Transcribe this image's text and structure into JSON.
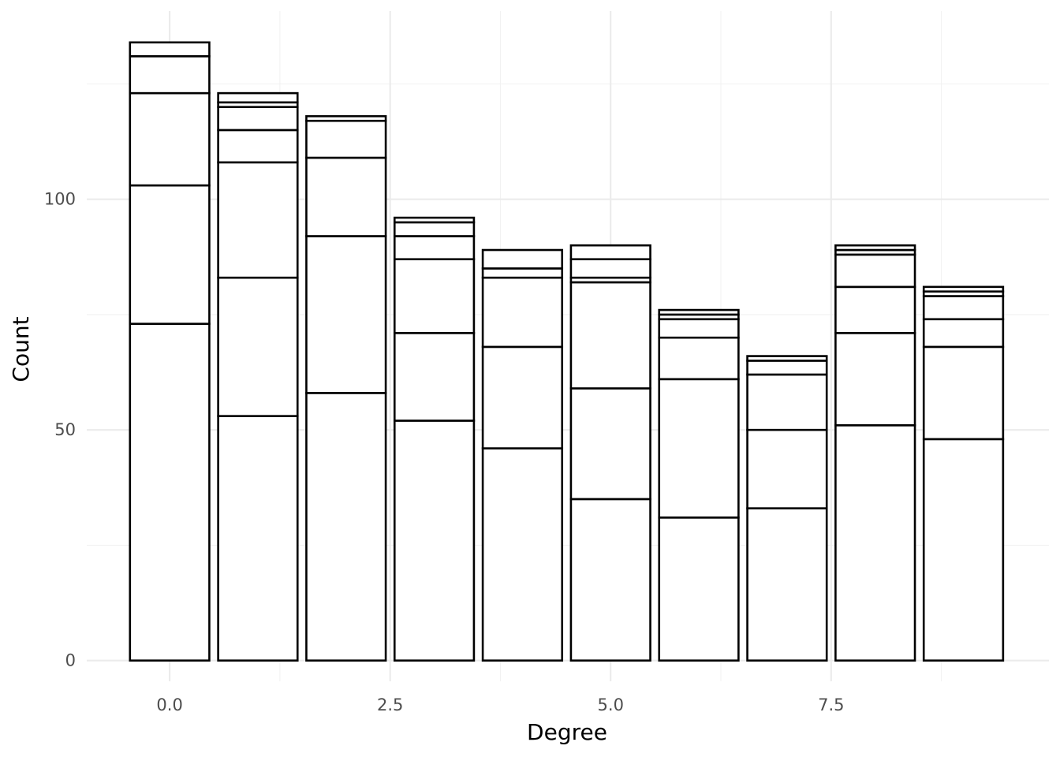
{
  "chart_data": {
    "type": "bar",
    "stacked": true,
    "xlabel": "Degree",
    "ylabel": "Count",
    "x": [
      0,
      1,
      2,
      3,
      4,
      5,
      6,
      7,
      8,
      9
    ],
    "xlim": [
      -0.94,
      9.97
    ],
    "ylim": [
      -4.5,
      140.8
    ],
    "x_ticks": [
      0,
      2.5,
      5,
      7.5
    ],
    "x_tick_labels": [
      "0.0",
      "2.5",
      "5.0",
      "7.5"
    ],
    "y_ticks": [
      0,
      50,
      100
    ],
    "y_tick_labels": [
      "0",
      "50",
      "100"
    ],
    "grid": true,
    "fill_color": "#ffffff",
    "outline_color": "#000000",
    "stack_boundaries": [
      [
        73,
        103,
        123,
        131,
        134
      ],
      [
        53,
        83,
        108,
        115,
        120,
        121,
        123
      ],
      [
        58,
        92,
        109,
        117,
        118
      ],
      [
        52,
        71,
        87,
        92,
        95,
        96
      ],
      [
        46,
        68,
        83,
        85,
        89
      ],
      [
        35,
        59,
        82,
        83,
        87,
        90
      ],
      [
        31,
        61,
        70,
        74,
        75,
        76
      ],
      [
        33,
        50,
        62,
        65,
        66
      ],
      [
        51,
        71,
        81,
        88,
        89,
        90
      ],
      [
        48,
        68,
        74,
        79,
        80,
        81
      ]
    ],
    "totals": [
      134,
      123,
      118,
      96,
      89,
      90,
      76,
      66,
      90,
      81
    ]
  }
}
